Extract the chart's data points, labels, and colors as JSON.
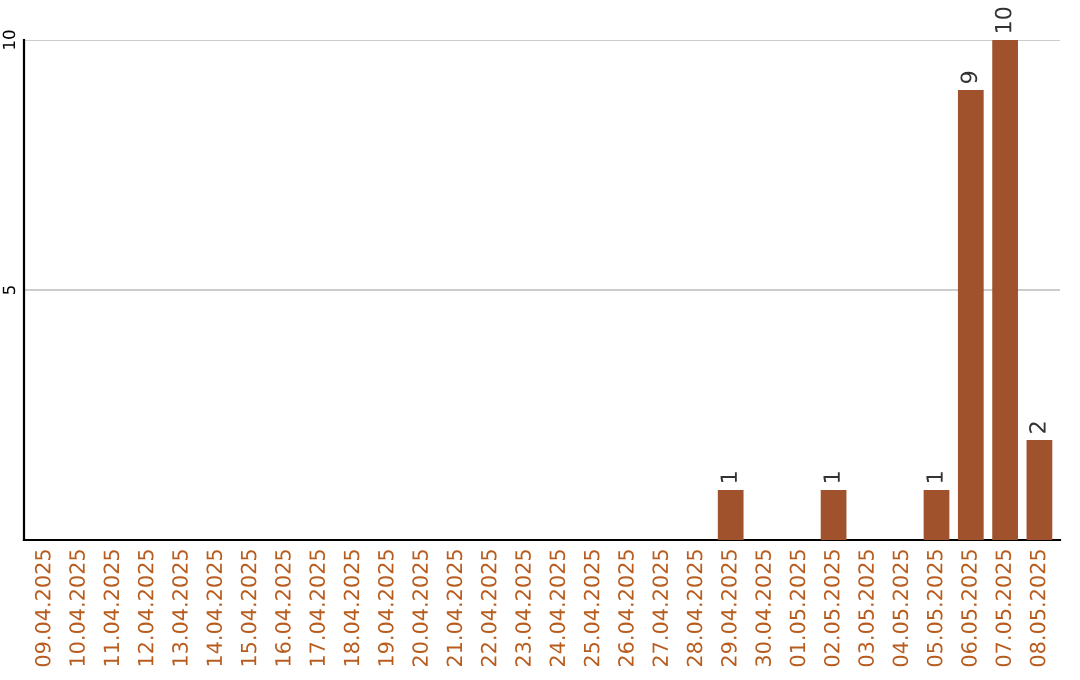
{
  "chart_data": {
    "type": "bar",
    "categories": [
      "09.04.2025",
      "10.04.2025",
      "11.04.2025",
      "12.04.2025",
      "13.04.2025",
      "14.04.2025",
      "15.04.2025",
      "16.04.2025",
      "17.04.2025",
      "18.04.2025",
      "19.04.2025",
      "20.04.2025",
      "21.04.2025",
      "22.04.2025",
      "23.04.2025",
      "24.04.2025",
      "25.04.2025",
      "26.04.2025",
      "27.04.2025",
      "28.04.2025",
      "29.04.2025",
      "30.04.2025",
      "01.05.2025",
      "02.05.2025",
      "03.05.2025",
      "04.05.2025",
      "05.05.2025",
      "06.05.2025",
      "07.05.2025",
      "08.05.2025"
    ],
    "values": [
      0,
      0,
      0,
      0,
      0,
      0,
      0,
      0,
      0,
      0,
      0,
      0,
      0,
      0,
      0,
      0,
      0,
      0,
      0,
      0,
      1,
      0,
      0,
      1,
      0,
      0,
      1,
      9,
      10,
      2
    ],
    "value_labels": [
      null,
      null,
      null,
      null,
      null,
      null,
      null,
      null,
      null,
      null,
      null,
      null,
      null,
      null,
      null,
      null,
      null,
      null,
      null,
      null,
      "1",
      null,
      null,
      "1",
      null,
      null,
      "1",
      "9",
      "10",
      "2"
    ],
    "color": "#a0522d",
    "ylim": [
      0,
      10
    ],
    "yticks": [
      5,
      10
    ],
    "grid": "y",
    "legend": false
  }
}
